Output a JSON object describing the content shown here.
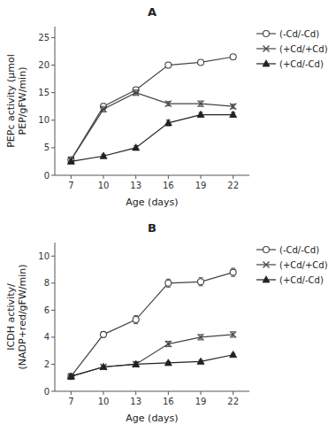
{
  "chart_data": [
    {
      "type": "line",
      "title": "A",
      "x_label": "Age (days)",
      "y_label": [
        "PEPc activity (µmol",
        "PEP/gFW/min)"
      ],
      "x": [
        7,
        10,
        13,
        16,
        19,
        22
      ],
      "xlim": [
        5.5,
        23.5
      ],
      "xticks": [
        7,
        10,
        13,
        16,
        19,
        22
      ],
      "ylim": [
        0,
        27
      ],
      "yticks": [
        0,
        5,
        10,
        15,
        20,
        25
      ],
      "grid": false,
      "legend": "right",
      "series": [
        {
          "name": "(-Cd/-Cd)",
          "color": "#444444",
          "marker": "open-circle",
          "line_style": "solid",
          "values": [
            2.8,
            12.5,
            15.5,
            20.0,
            20.5,
            21.5
          ],
          "yerr": [
            0.2,
            0.5,
            0.5,
            0.5,
            0.4,
            0.4
          ]
        },
        {
          "name": "(+Cd/+Cd)",
          "color": "#444444",
          "marker": "x",
          "line_style": "solid",
          "values": [
            2.8,
            12.0,
            15.0,
            13.0,
            13.0,
            12.5
          ],
          "yerr": [
            0.2,
            0.5,
            0.5,
            0.4,
            0.5,
            0.4
          ]
        },
        {
          "name": "(+Cd/-Cd)",
          "color": "#222222",
          "marker": "triangle",
          "line_style": "solid",
          "values": [
            2.5,
            3.5,
            5.0,
            9.5,
            11.0,
            11.0
          ],
          "yerr": [
            0.2,
            0.3,
            0.4,
            0.5,
            0.4,
            0.4
          ]
        }
      ]
    },
    {
      "type": "line",
      "title": "B",
      "x_label": "Age (days)",
      "y_label": [
        "ICDH activity/",
        "(NADP+red/gFW/min)"
      ],
      "x": [
        7,
        10,
        13,
        16,
        19,
        22
      ],
      "xlim": [
        5.5,
        23.5
      ],
      "xticks": [
        7,
        10,
        13,
        16,
        19,
        22
      ],
      "ylim": [
        0,
        11
      ],
      "yticks": [
        0,
        2,
        4,
        6,
        8,
        10
      ],
      "grid": false,
      "legend": "right",
      "series": [
        {
          "name": "(-Cd/-Cd)",
          "color": "#444444",
          "marker": "open-circle",
          "line_style": "solid",
          "values": [
            1.1,
            4.2,
            5.3,
            8.0,
            8.1,
            8.8
          ],
          "yerr": [
            0.1,
            0.2,
            0.3,
            0.3,
            0.3,
            0.3
          ]
        },
        {
          "name": "(+Cd/+Cd)",
          "color": "#444444",
          "marker": "x",
          "line_style": "solid",
          "values": [
            1.1,
            1.8,
            2.0,
            3.5,
            4.0,
            4.2
          ],
          "yerr": [
            0.1,
            0.1,
            0.2,
            0.2,
            0.2,
            0.2
          ]
        },
        {
          "name": "(+Cd/-Cd)",
          "color": "#222222",
          "marker": "triangle",
          "line_style": "solid",
          "values": [
            1.1,
            1.8,
            2.0,
            2.1,
            2.2,
            2.7
          ],
          "yerr": [
            0.1,
            0.1,
            0.1,
            0.1,
            0.1,
            0.1
          ]
        }
      ]
    }
  ]
}
